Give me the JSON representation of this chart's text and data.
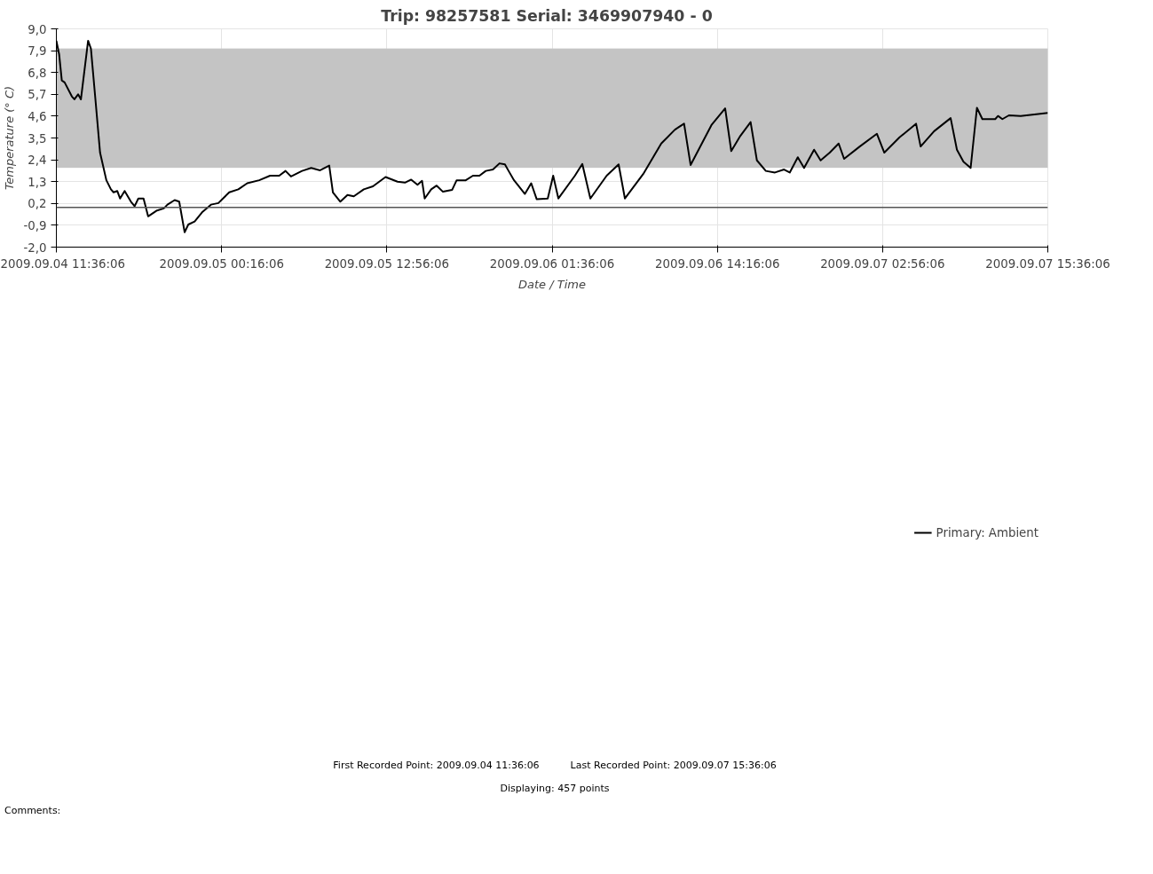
{
  "chart_data": {
    "type": "line",
    "title": "Trip: 98257581   Serial: 3469907940 - 0",
    "xlabel": "Date / Time",
    "ylabel": "Temperature (° C)",
    "x": [
      "2009-09-04T11:36",
      "2009-09-04T11:49",
      "2009-09-04T12:01",
      "2009-09-04T12:14",
      "2009-09-04T12:47",
      "2009-09-04T12:59",
      "2009-09-04T13:16",
      "2009-09-04T13:29",
      "2009-09-04T14:02",
      "2009-09-04T14:15",
      "2009-09-04T14:36",
      "2009-09-04T14:57",
      "2009-09-04T15:26",
      "2009-09-04T15:47",
      "2009-09-04T15:59",
      "2009-09-04T16:16",
      "2009-09-04T16:29",
      "2009-09-04T16:50",
      "2009-09-04T17:19",
      "2009-09-04T17:36",
      "2009-09-04T17:53",
      "2009-09-04T18:17",
      "2009-09-04T18:38",
      "2009-09-04T19:16",
      "2009-09-04T19:50",
      "2009-09-04T20:07",
      "2009-09-04T20:40",
      "2009-09-04T21:01",
      "2009-09-04T21:26",
      "2009-09-04T21:43",
      "2009-09-04T22:12",
      "2009-09-04T22:46",
      "2009-09-04T23:27",
      "2009-09-05T00:01",
      "2009-09-05T00:51",
      "2009-09-05T01:33",
      "2009-09-05T02:14",
      "2009-09-05T03:09",
      "2009-09-05T03:59",
      "2009-09-05T04:41",
      "2009-09-05T05:10",
      "2009-09-05T05:35",
      "2009-09-05T06:26",
      "2009-09-05T07:08",
      "2009-09-05T07:49",
      "2009-09-05T08:31",
      "2009-09-05T08:48",
      "2009-09-05T09:22",
      "2009-09-05T09:55",
      "2009-09-05T10:24",
      "2009-09-05T11:10",
      "2009-09-05T11:52",
      "2009-09-05T12:50",
      "2009-09-05T13:45",
      "2009-09-05T14:19",
      "2009-09-05T14:48",
      "2009-09-05T15:17",
      "2009-09-05T15:38",
      "2009-09-05T15:50",
      "2009-09-05T16:20",
      "2009-09-05T16:45",
      "2009-09-05T17:14",
      "2009-09-05T17:56",
      "2009-09-05T18:17",
      "2009-09-05T18:59",
      "2009-09-05T19:32",
      "2009-09-05T20:02",
      "2009-09-05T20:31",
      "2009-09-05T21:04",
      "2009-09-05T21:34",
      "2009-09-05T21:59",
      "2009-09-05T22:16",
      "2009-09-05T22:41",
      "2009-09-05T22:58",
      "2009-09-05T23:31",
      "2009-09-06T00:00",
      "2009-09-06T00:25",
      "2009-09-06T01:16",
      "2009-09-06T01:41",
      "2009-09-06T02:05",
      "2009-09-06T03:21",
      "2009-09-06T03:55",
      "2009-09-06T04:32",
      "2009-09-06T05:47",
      "2009-09-06T06:42",
      "2009-09-06T07:11",
      "2009-09-06T08:35",
      "2009-09-06T09:58",
      "2009-09-06T11:01",
      "2009-09-06T11:43",
      "2009-09-06T12:13",
      "2009-09-06T13:49",
      "2009-09-06T14:52",
      "2009-09-06T15:20",
      "2009-09-06T16:02",
      "2009-09-06T16:49",
      "2009-09-06T17:18",
      "2009-09-06T17:59",
      "2009-09-06T18:41",
      "2009-09-06T19:23",
      "2009-09-06T19:49",
      "2009-09-06T20:26",
      "2009-09-06T20:55",
      "2009-09-06T21:41",
      "2009-09-06T22:11",
      "2009-09-06T22:53",
      "2009-09-06T23:34",
      "2009-09-06T23:59",
      "2009-09-07T01:11",
      "2009-09-07T02:30",
      "2009-09-07T03:04",
      "2009-09-07T04:14",
      "2009-09-07T05:30",
      "2009-09-07T05:51",
      "2009-09-07T06:53",
      "2009-09-07T08:09",
      "2009-09-07T08:38",
      "2009-09-07T09:08",
      "2009-09-07T09:41",
      "2009-09-07T10:10",
      "2009-09-07T10:35",
      "2009-09-07T11:34",
      "2009-09-07T11:47",
      "2009-09-07T12:07",
      "2009-09-07T12:37",
      "2009-09-07T13:31",
      "2009-09-07T14:34",
      "2009-09-07T15:36"
    ],
    "series": [
      {
        "name": "Primary: Ambient",
        "color": "#000000",
        "values": [
          8.4,
          7.7,
          6.4,
          6.3,
          5.6,
          5.45,
          5.7,
          5.45,
          8.4,
          8.0,
          5.4,
          2.76,
          1.37,
          0.91,
          0.76,
          0.83,
          0.45,
          0.83,
          0.29,
          0.06,
          0.45,
          0.45,
          -0.45,
          -0.17,
          -0.05,
          0.14,
          0.37,
          0.29,
          -1.25,
          -0.86,
          -0.71,
          -0.25,
          0.14,
          0.22,
          0.76,
          0.91,
          1.22,
          1.37,
          1.6,
          1.6,
          1.84,
          1.56,
          1.84,
          1.99,
          1.87,
          2.11,
          0.76,
          0.29,
          0.63,
          0.56,
          0.91,
          1.06,
          1.53,
          1.3,
          1.25,
          1.4,
          1.14,
          1.34,
          0.45,
          0.91,
          1.1,
          0.79,
          0.88,
          1.37,
          1.37,
          1.6,
          1.6,
          1.84,
          1.91,
          2.22,
          2.17,
          1.84,
          1.37,
          1.14,
          0.68,
          1.22,
          0.42,
          0.45,
          1.6,
          0.45,
          1.6,
          2.19,
          0.45,
          1.6,
          2.17,
          0.45,
          1.68,
          3.22,
          3.92,
          4.22,
          2.14,
          4.15,
          4.99,
          2.84,
          3.61,
          4.3,
          2.37,
          1.84,
          1.76,
          1.91,
          1.76,
          2.53,
          1.99,
          2.91,
          2.37,
          2.76,
          3.22,
          2.45,
          3.07,
          3.71,
          2.76,
          3.53,
          4.22,
          3.07,
          3.84,
          4.5,
          2.91,
          2.3,
          1.99,
          5.02,
          4.45,
          4.45,
          4.61,
          4.45,
          4.64,
          4.61,
          4.69,
          4.76
        ]
      }
    ],
    "xlim": [
      "2009-09-04T11:36",
      "2009-09-07T15:36"
    ],
    "xticks": [
      {
        "value": "2009-09-04T11:36",
        "label": "2009.09.04 11:36:06"
      },
      {
        "value": "2009-09-05T00:16",
        "label": "2009.09.05 00:16:06"
      },
      {
        "value": "2009-09-05T12:56",
        "label": "2009.09.05 12:56:06"
      },
      {
        "value": "2009-09-06T01:36",
        "label": "2009.09.06 01:36:06"
      },
      {
        "value": "2009-09-06T14:16",
        "label": "2009.09.06 14:16:06"
      },
      {
        "value": "2009-09-07T02:56",
        "label": "2009.09.07 02:56:06"
      },
      {
        "value": "2009-09-07T15:36",
        "label": "2009.09.07 15:36:06"
      }
    ],
    "ylim": [
      -2.0,
      9.0
    ],
    "yticks": [
      {
        "value": -2.0,
        "label": "-2,0"
      },
      {
        "value": -0.9,
        "label": "-0,9"
      },
      {
        "value": 0.2,
        "label": "0,2"
      },
      {
        "value": 1.3,
        "label": "1,3"
      },
      {
        "value": 2.4,
        "label": "2,4"
      },
      {
        "value": 3.5,
        "label": "3,5"
      },
      {
        "value": 4.6,
        "label": "4,6"
      },
      {
        "value": 5.7,
        "label": "5,7"
      },
      {
        "value": 6.8,
        "label": "6,8"
      },
      {
        "value": 7.9,
        "label": "7,9"
      },
      {
        "value": 9.0,
        "label": "9,0"
      }
    ],
    "bands": [
      {
        "axis": "y",
        "from": 2,
        "to": 8,
        "color": "#c4c4c4"
      }
    ],
    "ref_lines": [
      {
        "axis": "y",
        "value": 0,
        "color": "#555555"
      }
    ],
    "grid": true,
    "legend": "bottom right",
    "line_style": "solid",
    "annotations": [
      "First Recorded Point: 2009.09.04 11:36:06          Last Recorded Point: 2009.09.07 15:36:06",
      "Displaying: 457 points",
      "Comments:"
    ]
  }
}
